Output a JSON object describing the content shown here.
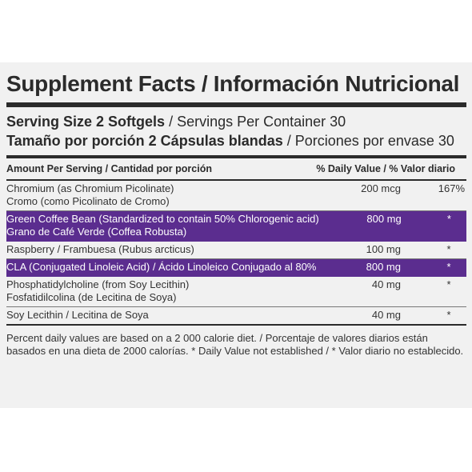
{
  "title": "Supplement Facts / Información Nutricional",
  "serving": {
    "line1_bold": "Serving Size 2 Softgels",
    "line1_rest": " / Servings Per Container 30",
    "line2_bold": "Tamaño por porción 2 Cápsulas blandas",
    "line2_rest": " / Porciones por envase 30"
  },
  "header": {
    "left": "Amount Per Serving / Cantidad por porción",
    "right": "% Daily Value / % Valor diario"
  },
  "rows": [
    {
      "name1": "Chromium (as Chromium Picolinate)",
      "name2": "Cromo (como Picolinato de Cromo)",
      "amount": "200 mcg",
      "dv": "167%"
    },
    {
      "name1": "Green Coffee Bean (Standardized to contain 50% Chlorogenic acid)",
      "name2": "Grano de Café Verde (Coffea Robusta)",
      "amount": "800 mg",
      "dv": "*"
    },
    {
      "name1": "Raspberry / Frambuesa (Rubus arcticus)",
      "name2": "",
      "amount": "100 mg",
      "dv": "*"
    },
    {
      "name1": "CLA (Conjugated Linoleic Acid) / Ácido Linoleico Conjugado al 80%",
      "name2": "",
      "amount": "800 mg",
      "dv": "*"
    },
    {
      "name1": "Phosphatidylcholine (from Soy Lecithin)",
      "name2": "Fosfatidilcolina (de Lecitina de Soya)",
      "amount": "40 mg",
      "dv": "*"
    },
    {
      "name1": "Soy Lecithin / Lecitina de Soya",
      "name2": "",
      "amount": "40 mg",
      "dv": "*"
    }
  ],
  "footnote": "Percent daily values are based on a 2 000 calorie diet.  / Porcentaje de valores diarios están basados en una dieta de 2000 calorías. * Daily Value not established / * Valor diario no establecido.",
  "colors": {
    "accent_row": "#5b2d8f",
    "rule": "#2b2b2b",
    "panel": "#f1f1f1"
  }
}
